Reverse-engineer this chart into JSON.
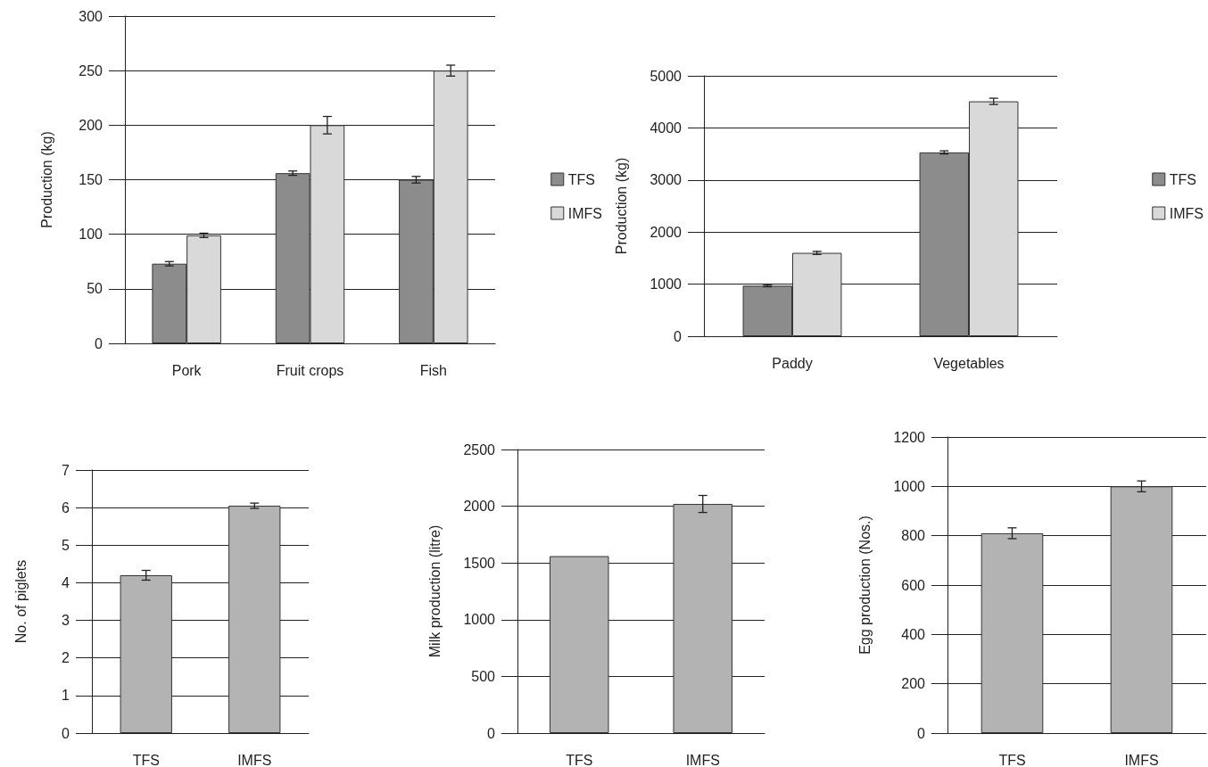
{
  "chart_data": [
    {
      "type": "bar",
      "ylabel": "Production (kg)",
      "categories": [
        "Pork",
        "Fruit crops",
        "Fish"
      ],
      "ylim": [
        0,
        300
      ],
      "yticks": [
        0,
        50,
        100,
        150,
        200,
        250,
        300
      ],
      "grid": "y",
      "legend": "right",
      "series": [
        {
          "name": "TFS",
          "color": "#8c8c8c",
          "values": [
            73,
            156,
            150
          ],
          "errors": [
            2,
            2,
            3
          ]
        },
        {
          "name": "IMFS",
          "color": "#d9d9d9",
          "values": [
            99,
            200,
            250
          ],
          "errors": [
            2,
            8,
            5
          ]
        }
      ]
    },
    {
      "type": "bar",
      "ylabel": "Production (kg)",
      "categories": [
        "Paddy",
        "Vegetables"
      ],
      "ylim": [
        0,
        5000
      ],
      "yticks": [
        0,
        1000,
        2000,
        3000,
        4000,
        5000
      ],
      "grid": "y",
      "legend": "right",
      "series": [
        {
          "name": "TFS",
          "color": "#8c8c8c",
          "values": [
            970,
            3530
          ],
          "errors": [
            20,
            30
          ]
        },
        {
          "name": "IMFS",
          "color": "#d9d9d9",
          "values": [
            1600,
            4510
          ],
          "errors": [
            30,
            60
          ]
        }
      ]
    },
    {
      "type": "bar",
      "ylabel": "No. of piglets",
      "categories": [
        "TFS",
        "IMFS"
      ],
      "ylim": [
        0,
        7
      ],
      "yticks": [
        0,
        1,
        2,
        3,
        4,
        5,
        6,
        7
      ],
      "grid": "y",
      "legend": false,
      "series": [
        {
          "color": "#b3b3b3",
          "values": [
            4.2,
            6.05
          ],
          "errors": [
            0.13,
            0.07
          ]
        }
      ]
    },
    {
      "type": "bar",
      "ylabel": "Milk production (litre)",
      "categories": [
        "TFS",
        "IMFS"
      ],
      "ylim": [
        0,
        2500
      ],
      "yticks": [
        0,
        500,
        1000,
        1500,
        2000,
        2500
      ],
      "grid": "y",
      "legend": false,
      "series": [
        {
          "color": "#b3b3b3",
          "values": [
            1560,
            2020
          ],
          "errors": [
            null,
            75
          ]
        }
      ]
    },
    {
      "type": "bar",
      "ylabel": "Egg production (Nos.)",
      "categories": [
        "TFS",
        "IMFS"
      ],
      "ylim": [
        0,
        1200
      ],
      "yticks": [
        0,
        200,
        400,
        600,
        800,
        1000,
        1200
      ],
      "grid": "y",
      "legend": false,
      "series": [
        {
          "color": "#b3b3b3",
          "values": [
            810,
            1000
          ],
          "errors": [
            22,
            22
          ]
        }
      ]
    }
  ]
}
